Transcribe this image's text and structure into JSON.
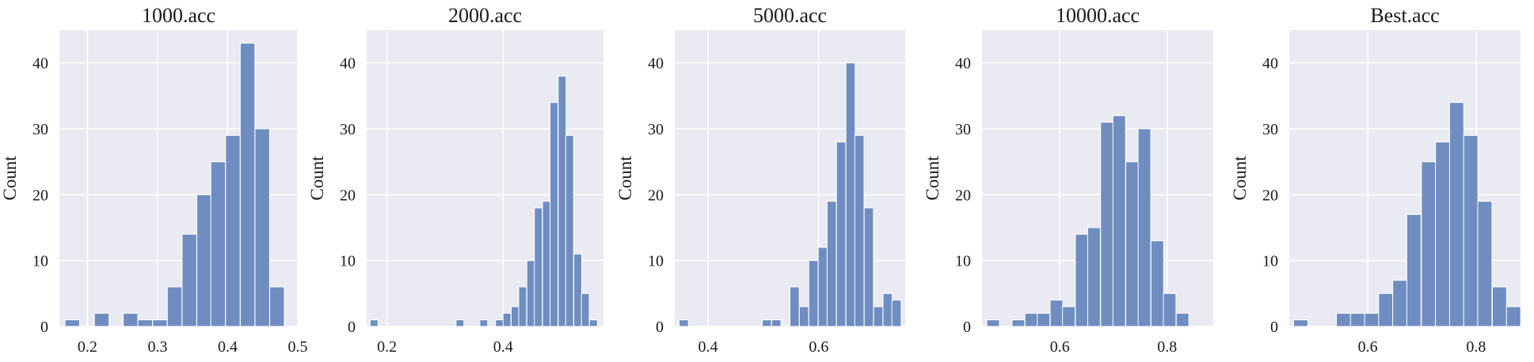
{
  "colors": {
    "plot_bg": "#EAEAF2",
    "grid": "#FFFFFF",
    "bar_fill": "#6F8DC0",
    "bar_edge": "#FFFFFF"
  },
  "chart_data": [
    {
      "type": "bar",
      "title": "1000.acc",
      "ylabel": "Count",
      "xlim": [
        0.16,
        0.5
      ],
      "ylim": [
        0,
        45
      ],
      "xticks": [
        0.2,
        0.3,
        0.4,
        0.5
      ],
      "xtick_labels": [
        "0.2",
        "0.3",
        "0.4",
        "0.5"
      ],
      "yticks": [
        0,
        10,
        20,
        30,
        40
      ],
      "bin_width": 0.0208,
      "bin_starts": [
        0.168,
        0.189,
        0.21,
        0.231,
        0.251,
        0.272,
        0.293,
        0.314,
        0.335,
        0.356,
        0.376,
        0.397,
        0.418,
        0.439,
        0.46
      ],
      "values": [
        1,
        0,
        2,
        0,
        2,
        1,
        1,
        6,
        14,
        20,
        25,
        29,
        43,
        30,
        6
      ],
      "grid": true
    },
    {
      "type": "bar",
      "title": "2000.acc",
      "ylabel": "Count",
      "xlim": [
        0.165,
        0.573
      ],
      "ylim": [
        0,
        45
      ],
      "xticks": [
        0.2,
        0.4
      ],
      "xtick_labels": [
        "0.2",
        "0.4"
      ],
      "yticks": [
        0,
        10,
        20,
        30,
        40
      ],
      "bin_width": 0.0135,
      "bin_starts": [
        0.171,
        0.184,
        0.198,
        0.211,
        0.225,
        0.238,
        0.252,
        0.265,
        0.279,
        0.292,
        0.306,
        0.319,
        0.333,
        0.346,
        0.36,
        0.373,
        0.387,
        0.4,
        0.414,
        0.427,
        0.441,
        0.454,
        0.468,
        0.481,
        0.495,
        0.508,
        0.522,
        0.535,
        0.549
      ],
      "values": [
        1,
        0,
        0,
        0,
        0,
        0,
        0,
        0,
        0,
        0,
        0,
        1,
        0,
        0,
        1,
        0,
        1,
        2,
        3,
        6,
        10,
        18,
        19,
        34,
        38,
        29,
        11,
        5,
        1
      ],
      "grid": true
    },
    {
      "type": "bar",
      "title": "5000.acc",
      "ylabel": "Count",
      "xlim": [
        0.34,
        0.756
      ],
      "ylim": [
        0,
        45
      ],
      "xticks": [
        0.4,
        0.6
      ],
      "xtick_labels": [
        "0.4",
        "0.6"
      ],
      "yticks": [
        0,
        10,
        20,
        30,
        40
      ],
      "bin_width": 0.0167,
      "bin_starts": [
        0.348,
        0.365,
        0.381,
        0.398,
        0.415,
        0.432,
        0.448,
        0.465,
        0.482,
        0.498,
        0.515,
        0.532,
        0.548,
        0.565,
        0.582,
        0.599,
        0.615,
        0.632,
        0.649,
        0.665,
        0.682,
        0.699,
        0.716,
        0.732
      ],
      "values": [
        1,
        0,
        0,
        0,
        0,
        0,
        0,
        0,
        0,
        1,
        1,
        0,
        6,
        3,
        10,
        12,
        19,
        28,
        40,
        29,
        18,
        3,
        5,
        4
      ],
      "grid": true
    },
    {
      "type": "bar",
      "title": "10000.acc",
      "ylabel": "Count",
      "xlim": [
        0.455,
        0.886
      ],
      "ylim": [
        0,
        45
      ],
      "xticks": [
        0.6,
        0.8
      ],
      "xtick_labels": [
        "0.6",
        "0.8"
      ],
      "yticks": [
        0,
        10,
        20,
        30,
        40
      ],
      "bin_width": 0.0235,
      "bin_starts": [
        0.464,
        0.488,
        0.511,
        0.535,
        0.558,
        0.582,
        0.605,
        0.629,
        0.652,
        0.676,
        0.699,
        0.723,
        0.746,
        0.77,
        0.793,
        0.817,
        0.84,
        0.864
      ],
      "values": [
        1,
        0,
        1,
        2,
        2,
        4,
        3,
        14,
        15,
        31,
        32,
        25,
        30,
        13,
        5,
        2,
        0,
        0
      ],
      "grid": true
    },
    {
      "type": "bar",
      "title": "Best.acc",
      "ylabel": "Count",
      "xlim": [
        0.455,
        0.882
      ],
      "ylim": [
        0,
        45
      ],
      "xticks": [
        0.6,
        0.8
      ],
      "xtick_labels": [
        "0.6",
        "0.8"
      ],
      "yticks": [
        0,
        10,
        20,
        30,
        40
      ],
      "bin_width": 0.0262,
      "bin_starts": [
        0.463,
        0.489,
        0.515,
        0.542,
        0.568,
        0.594,
        0.62,
        0.646,
        0.672,
        0.699,
        0.725,
        0.751,
        0.777,
        0.803,
        0.83,
        0.856
      ],
      "values": [
        1,
        0,
        0,
        2,
        2,
        2,
        5,
        7,
        17,
        25,
        28,
        34,
        29,
        19,
        6,
        3
      ],
      "grid": true
    }
  ]
}
